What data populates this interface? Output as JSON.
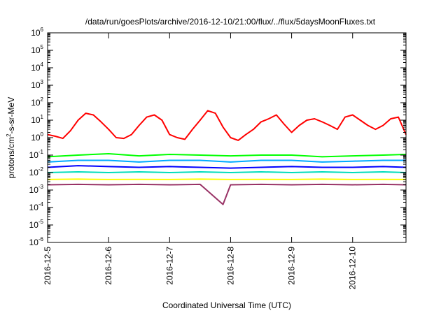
{
  "chart_data": {
    "type": "line",
    "title": "/data/run/goesPlots/archive/2016-12-10/21:00/flux/../flux/5daysMoonFluxes.txt",
    "xlabel": "Coordinated Universal Time (UTC)",
    "ylabel": {
      "main": "protons/cm",
      "sup": "2",
      "rest": "-s-sr-MeV"
    },
    "yscale": "log",
    "ylim": [
      1e-06,
      1000000.0
    ],
    "y_ticks": [
      {
        "base": "10",
        "exp": "-6"
      },
      {
        "base": "10",
        "exp": "-5"
      },
      {
        "base": "10",
        "exp": "-4"
      },
      {
        "base": "10",
        "exp": "-3"
      },
      {
        "base": "10",
        "exp": "-2"
      },
      {
        "base": "10",
        "exp": "-1"
      },
      {
        "base": "10",
        "exp": "0"
      },
      {
        "base": "10",
        "exp": "1"
      },
      {
        "base": "10",
        "exp": "2"
      },
      {
        "base": "10",
        "exp": "3"
      },
      {
        "base": "10",
        "exp": "4"
      },
      {
        "base": "10",
        "exp": "5"
      },
      {
        "base": "10",
        "exp": "6"
      }
    ],
    "xlim": [
      "2016-12-05",
      "2016-12-10T21:00"
    ],
    "x_ticks": [
      "2016-12-5",
      "2016-12-6",
      "2016-12-7",
      "2016-12-8",
      "2016-12-9",
      "2016-12-10"
    ],
    "grid": false,
    "legend": "none",
    "series": [
      {
        "color": "#ff0000",
        "x": [
          "2016-12-05T00:00",
          "2016-12-05T03:00",
          "2016-12-05T06:00",
          "2016-12-05T09:00",
          "2016-12-05T12:00",
          "2016-12-05T15:00",
          "2016-12-05T18:00",
          "2016-12-05T21:00",
          "2016-12-06T00:00",
          "2016-12-06T03:00",
          "2016-12-06T06:00",
          "2016-12-06T09:00",
          "2016-12-06T12:00",
          "2016-12-06T15:00",
          "2016-12-06T18:00",
          "2016-12-06T21:00",
          "2016-12-07T00:00",
          "2016-12-07T03:00",
          "2016-12-07T06:00",
          "2016-12-07T09:00",
          "2016-12-07T12:00",
          "2016-12-07T15:00",
          "2016-12-07T18:00",
          "2016-12-07T21:00",
          "2016-12-08T00:00",
          "2016-12-08T03:00",
          "2016-12-08T06:00",
          "2016-12-08T09:00",
          "2016-12-08T12:00",
          "2016-12-08T15:00",
          "2016-12-08T18:00",
          "2016-12-08T21:00",
          "2016-12-09T00:00",
          "2016-12-09T03:00",
          "2016-12-09T06:00",
          "2016-12-09T09:00",
          "2016-12-09T12:00",
          "2016-12-09T15:00",
          "2016-12-09T18:00",
          "2016-12-09T21:00",
          "2016-12-10T00:00",
          "2016-12-10T03:00",
          "2016-12-10T06:00",
          "2016-12-10T09:00",
          "2016-12-10T12:00",
          "2016-12-10T15:00",
          "2016-12-10T18:00",
          "2016-12-10T21:00"
        ],
        "y": [
          1.5,
          1.2,
          0.9,
          2.5,
          10,
          25,
          20,
          8,
          3,
          1,
          0.9,
          1.5,
          5,
          15,
          20,
          10,
          1.5,
          1,
          0.8,
          3,
          10,
          35,
          25,
          4,
          1,
          0.7,
          1.5,
          3,
          8,
          12,
          20,
          6,
          2,
          5,
          10,
          12,
          8,
          5,
          3,
          15,
          20,
          10,
          5,
          3,
          5,
          12,
          15,
          1.5
        ]
      },
      {
        "color": "#00ff00",
        "x": [
          "2016-12-05T00:00",
          "2016-12-05T12:00",
          "2016-12-06T00:00",
          "2016-12-06T12:00",
          "2016-12-07T00:00",
          "2016-12-07T12:00",
          "2016-12-08T00:00",
          "2016-12-08T12:00",
          "2016-12-09T00:00",
          "2016-12-09T12:00",
          "2016-12-10T00:00",
          "2016-12-10T12:00",
          "2016-12-10T21:00"
        ],
        "y": [
          0.08,
          0.1,
          0.12,
          0.09,
          0.11,
          0.1,
          0.09,
          0.1,
          0.1,
          0.08,
          0.09,
          0.1,
          0.11
        ]
      },
      {
        "color": "#00aaff",
        "x": [
          "2016-12-05T00:00",
          "2016-12-05T12:00",
          "2016-12-06T00:00",
          "2016-12-06T12:00",
          "2016-12-07T00:00",
          "2016-12-07T12:00",
          "2016-12-08T00:00",
          "2016-12-08T12:00",
          "2016-12-09T00:00",
          "2016-12-09T12:00",
          "2016-12-10T00:00",
          "2016-12-10T12:00",
          "2016-12-10T21:00"
        ],
        "y": [
          0.04,
          0.05,
          0.05,
          0.04,
          0.05,
          0.05,
          0.04,
          0.05,
          0.05,
          0.04,
          0.045,
          0.05,
          0.05
        ]
      },
      {
        "color": "#0000ff",
        "x": [
          "2016-12-05T00:00",
          "2016-12-05T12:00",
          "2016-12-06T00:00",
          "2016-12-06T12:00",
          "2016-12-07T00:00",
          "2016-12-07T12:00",
          "2016-12-08T00:00",
          "2016-12-08T12:00",
          "2016-12-09T00:00",
          "2016-12-09T12:00",
          "2016-12-10T00:00",
          "2016-12-10T12:00",
          "2016-12-10T21:00"
        ],
        "y": [
          0.02,
          0.025,
          0.022,
          0.02,
          0.022,
          0.02,
          0.018,
          0.02,
          0.022,
          0.02,
          0.02,
          0.022,
          0.02
        ]
      },
      {
        "color": "#00ddbb",
        "x": [
          "2016-12-05T00:00",
          "2016-12-05T12:00",
          "2016-12-06T00:00",
          "2016-12-06T12:00",
          "2016-12-07T00:00",
          "2016-12-07T12:00",
          "2016-12-08T00:00",
          "2016-12-08T12:00",
          "2016-12-09T00:00",
          "2016-12-09T12:00",
          "2016-12-10T00:00",
          "2016-12-10T12:00",
          "2016-12-10T21:00"
        ],
        "y": [
          0.01,
          0.011,
          0.01,
          0.011,
          0.01,
          0.011,
          0.01,
          0.011,
          0.01,
          0.011,
          0.01,
          0.011,
          0.01
        ]
      },
      {
        "color": "#ffff00",
        "x": [
          "2016-12-05T00:00",
          "2016-12-05T12:00",
          "2016-12-06T00:00",
          "2016-12-06T12:00",
          "2016-12-07T00:00",
          "2016-12-07T12:00",
          "2016-12-08T00:00",
          "2016-12-08T12:00",
          "2016-12-09T00:00",
          "2016-12-09T12:00",
          "2016-12-10T00:00",
          "2016-12-10T12:00",
          "2016-12-10T21:00"
        ],
        "y": [
          0.004,
          0.0042,
          0.004,
          0.0041,
          0.004,
          0.0042,
          0.004,
          0.0041,
          0.004,
          0.0042,
          0.004,
          0.0041,
          0.004
        ]
      },
      {
        "color": "#993366",
        "x": [
          "2016-12-05T00:00",
          "2016-12-05T12:00",
          "2016-12-06T00:00",
          "2016-12-06T12:00",
          "2016-12-07T00:00",
          "2016-12-07T12:00",
          "2016-12-07T21:00",
          "2016-12-08T00:00",
          "2016-12-08T12:00",
          "2016-12-09T00:00",
          "2016-12-09T12:00",
          "2016-12-10T00:00",
          "2016-12-10T12:00",
          "2016-12-10T21:00"
        ],
        "y": [
          0.002,
          0.0021,
          0.002,
          0.0021,
          0.002,
          0.0021,
          0.00015,
          0.002,
          0.0021,
          0.002,
          0.0021,
          0.002,
          0.0021,
          0.002
        ]
      }
    ]
  }
}
